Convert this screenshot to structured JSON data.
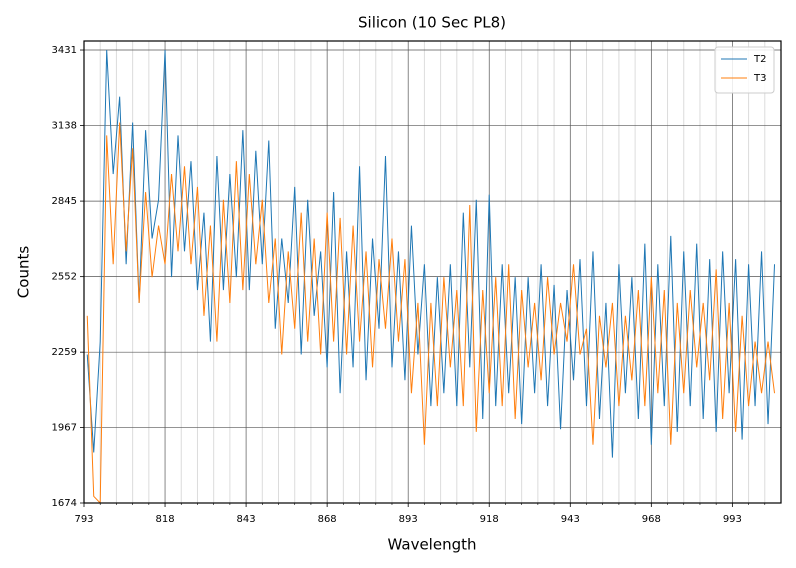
{
  "chart_data": {
    "type": "line",
    "title": "Silicon (10 Sec PL8)",
    "x_label": "Wavelength",
    "y_label": "Counts",
    "xlim": [
      793,
      1008
    ],
    "ylim": [
      1674,
      3466
    ],
    "xticks": [
      793,
      818,
      843,
      868,
      893,
      918,
      943,
      968,
      993
    ],
    "xminorticks": [
      798,
      803,
      808,
      813,
      823,
      828,
      833,
      838,
      848,
      853,
      858,
      863,
      873,
      878,
      883,
      888,
      898,
      903,
      908,
      913,
      923,
      928,
      933,
      938,
      948,
      953,
      958,
      963,
      973,
      978,
      983,
      988,
      998,
      1003
    ],
    "yticks": [
      1674,
      1967,
      2259,
      2552,
      2845,
      3138,
      3431
    ],
    "grid": true,
    "legend": "upper right",
    "x": [
      794,
      796,
      798,
      800,
      802,
      804,
      806,
      808,
      810,
      812,
      814,
      816,
      818,
      820,
      822,
      824,
      826,
      828,
      830,
      832,
      834,
      836,
      838,
      840,
      842,
      844,
      846,
      848,
      850,
      852,
      854,
      856,
      858,
      860,
      862,
      864,
      866,
      868,
      870,
      872,
      874,
      876,
      878,
      880,
      882,
      884,
      886,
      888,
      890,
      892,
      894,
      896,
      898,
      900,
      902,
      904,
      906,
      908,
      910,
      912,
      914,
      916,
      918,
      920,
      922,
      924,
      926,
      928,
      930,
      932,
      934,
      936,
      938,
      940,
      942,
      944,
      946,
      948,
      950,
      952,
      954,
      956,
      958,
      960,
      962,
      964,
      966,
      968,
      970,
      972,
      974,
      976,
      978,
      980,
      982,
      984,
      986,
      988,
      990,
      992,
      994,
      996,
      998,
      1000,
      1002,
      1004,
      1006
    ],
    "series": [
      {
        "name": "T2",
        "color": "#1f77b4",
        "values": [
          2250,
          1870,
          2300,
          3431,
          2950,
          3250,
          2600,
          3150,
          2450,
          3120,
          2700,
          2850,
          3431,
          2550,
          3100,
          2650,
          3000,
          2500,
          2800,
          2300,
          3020,
          2500,
          2950,
          2550,
          3120,
          2500,
          3040,
          2600,
          3080,
          2350,
          2700,
          2450,
          2900,
          2250,
          2850,
          2400,
          2650,
          2200,
          2880,
          2100,
          2650,
          2200,
          2980,
          2150,
          2700,
          2350,
          3020,
          2200,
          2650,
          2150,
          2750,
          2250,
          2600,
          2050,
          2550,
          2100,
          2600,
          2050,
          2800,
          2200,
          2850,
          2000,
          2870,
          2050,
          2600,
          2100,
          2550,
          1980,
          2550,
          2100,
          2600,
          2050,
          2520,
          1960,
          2500,
          2150,
          2620,
          2050,
          2650,
          2000,
          2450,
          1850,
          2600,
          2100,
          2550,
          2000,
          2680,
          1900,
          2600,
          2050,
          2710,
          1950,
          2650,
          2050,
          2680,
          2000,
          2620,
          1950,
          2650,
          2100,
          2620,
          1920,
          2600,
          2050,
          2650,
          1980,
          2600
        ]
      },
      {
        "name": "T3",
        "color": "#ff7f0e",
        "values": [
          2400,
          1700,
          1674,
          3100,
          2600,
          3150,
          2650,
          3050,
          2450,
          2880,
          2550,
          2750,
          2600,
          2950,
          2650,
          2980,
          2600,
          2900,
          2400,
          2750,
          2300,
          2850,
          2450,
          3000,
          2500,
          2950,
          2600,
          2850,
          2450,
          2700,
          2250,
          2650,
          2350,
          2800,
          2300,
          2700,
          2250,
          2800,
          2300,
          2780,
          2250,
          2750,
          2300,
          2650,
          2200,
          2620,
          2350,
          2700,
          2300,
          2620,
          2100,
          2450,
          1900,
          2450,
          2050,
          2550,
          2200,
          2500,
          2050,
          2830,
          1950,
          2500,
          2100,
          2550,
          2050,
          2600,
          2000,
          2500,
          2200,
          2450,
          2150,
          2550,
          2250,
          2450,
          2300,
          2600,
          2250,
          2350,
          1900,
          2400,
          2200,
          2450,
          2050,
          2400,
          2150,
          2500,
          2050,
          2550,
          2100,
          2500,
          1900,
          2450,
          2100,
          2500,
          2200,
          2450,
          2150,
          2580,
          2000,
          2450,
          1950,
          2400,
          2050,
          2300,
          2100,
          2300,
          2100
        ]
      }
    ]
  }
}
